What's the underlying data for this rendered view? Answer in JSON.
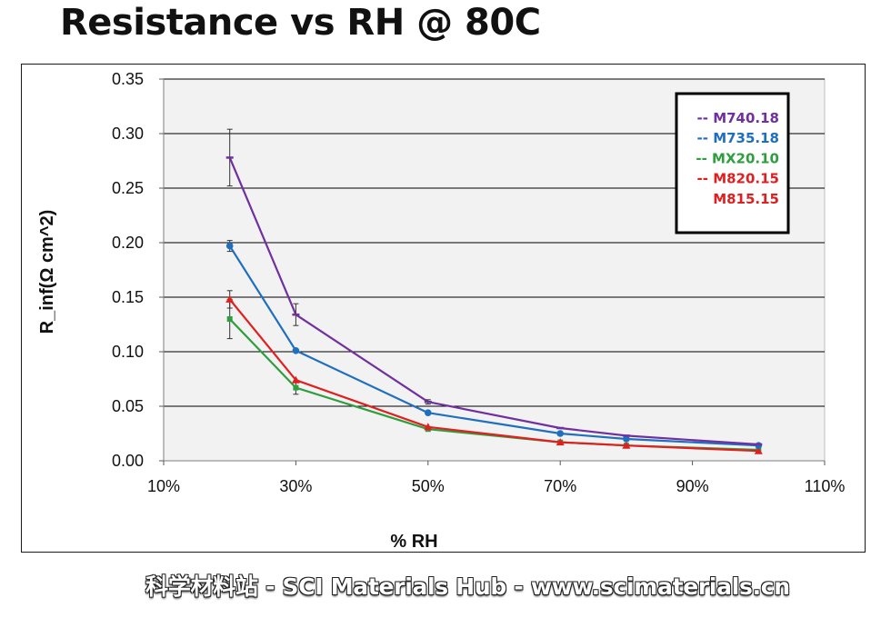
{
  "title": "Resistance vs RH @ 80C",
  "watermark": "科学材料站 - SCI Materials Hub - www.scimaterials.cn",
  "chart_data": {
    "type": "line",
    "xlabel": "% RH",
    "ylabel": "R_inf(Ω cm^2)",
    "xlim": [
      10,
      110
    ],
    "ylim": [
      0,
      0.35
    ],
    "x_ticks": [
      "10%",
      "30%",
      "50%",
      "70%",
      "90%",
      "110%"
    ],
    "y_ticks": [
      "0.00",
      "0.05",
      "0.10",
      "0.15",
      "0.20",
      "0.25",
      "0.30",
      "0.35"
    ],
    "grid": "horizontal",
    "legend_position": "top-right",
    "series": [
      {
        "name": "M740.18",
        "color": "#7030a0",
        "marker": "dash",
        "legend_prefix": "--",
        "x": [
          20,
          30,
          50,
          70,
          80,
          100
        ],
        "y": [
          0.278,
          0.134,
          0.054,
          0.03,
          0.023,
          0.015
        ],
        "error": [
          0.026,
          0.01,
          0.002,
          0.0,
          0.0,
          0.0
        ]
      },
      {
        "name": "M735.18",
        "color": "#1f6fbf",
        "marker": "circle",
        "legend_prefix": "--",
        "x": [
          20,
          30,
          50,
          70,
          80,
          100
        ],
        "y": [
          0.197,
          0.101,
          0.044,
          0.025,
          0.02,
          0.014
        ],
        "error": [
          0.005,
          0.0,
          0.0,
          0.0,
          0.0,
          0.0
        ]
      },
      {
        "name": "MX20.10",
        "color": "#2e9e3e",
        "marker": "square",
        "legend_prefix": "--",
        "x": [
          20,
          30,
          50,
          70,
          80,
          100
        ],
        "y": [
          0.13,
          0.067,
          0.029,
          0.017,
          0.014,
          0.01
        ],
        "error": [
          0.018,
          0.006,
          0.0,
          0.0,
          0.0,
          0.0
        ]
      },
      {
        "name": "M820.15",
        "color": "#e02020",
        "marker": "triangle",
        "legend_prefix": "--",
        "x": [
          20,
          30,
          50,
          70,
          80,
          100
        ],
        "y": [
          0.148,
          0.074,
          0.031,
          0.017,
          0.014,
          0.009
        ],
        "error": [
          0.008,
          0.0,
          0.0,
          0.0,
          0.0,
          0.0
        ]
      },
      {
        "name": "M815.15",
        "color": "#e02020",
        "marker": "none",
        "legend_prefix": "",
        "x": [],
        "y": [],
        "error": []
      }
    ]
  }
}
